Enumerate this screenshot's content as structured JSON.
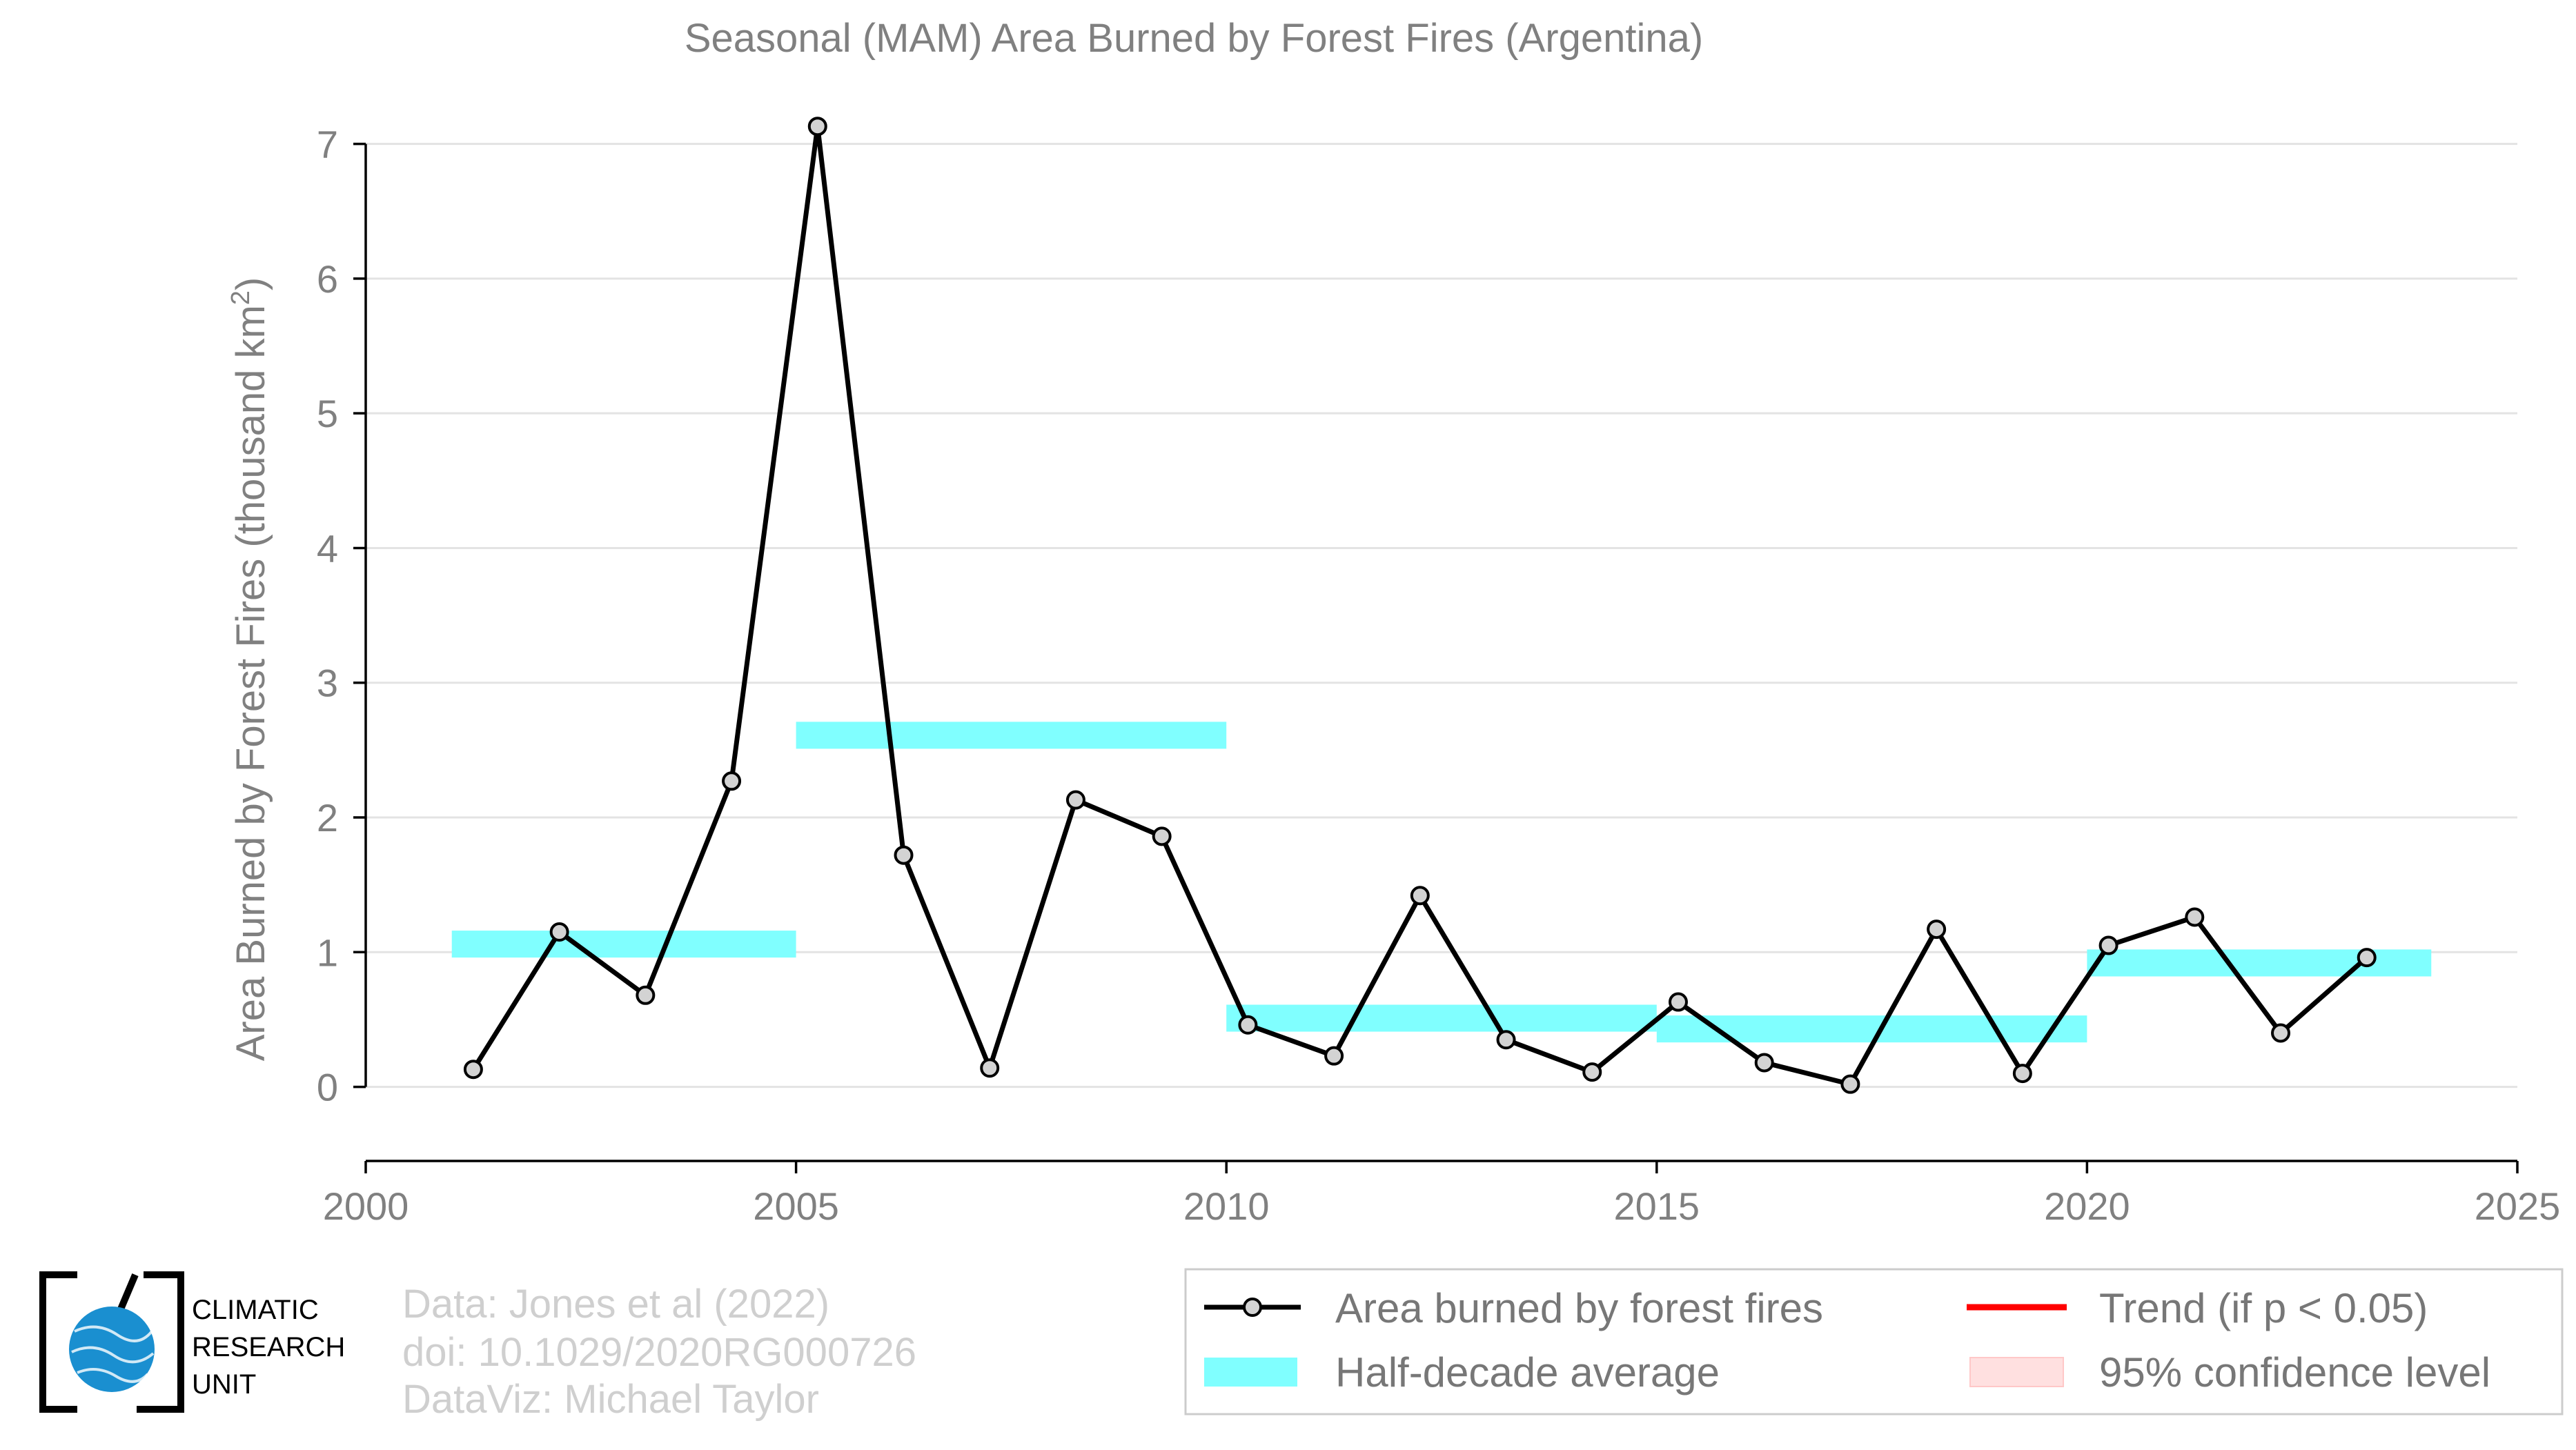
{
  "chart_data": {
    "type": "line",
    "title": "Seasonal (MAM) Area Burned by Forest Fires (Argentina)",
    "ylabel_main": "Area Burned by Forest Fires (thousand km",
    "ylabel_sup": "2",
    "ylabel_end": ")",
    "xlabel": "",
    "xlim": [
      2000,
      2025
    ],
    "ylim": [
      -0.55,
      7.3
    ],
    "xticks": [
      2000,
      2005,
      2010,
      2015,
      2020,
      2025
    ],
    "xtick_labels": [
      "2000",
      "2005",
      "2010",
      "2015",
      "2020",
      "2025"
    ],
    "yticks": [
      0,
      1,
      2,
      3,
      4,
      5,
      6,
      7
    ],
    "ytick_labels": [
      "0",
      "1",
      "2",
      "3",
      "4",
      "5",
      "6",
      "7"
    ],
    "grid": true,
    "series": [
      {
        "name": "Area burned by forest fires",
        "color": "#000000",
        "marker_color": "#d3d3d3",
        "x": [
          2001.25,
          2002.25,
          2003.25,
          2004.25,
          2005.25,
          2006.25,
          2007.25,
          2008.25,
          2009.25,
          2010.25,
          2011.25,
          2012.25,
          2013.25,
          2014.25,
          2015.25,
          2016.25,
          2017.25,
          2018.25,
          2019.25,
          2020.25,
          2021.25,
          2022.25,
          2023.25
        ],
        "y": [
          0.13,
          1.15,
          0.68,
          2.27,
          7.13,
          1.72,
          0.14,
          2.13,
          1.86,
          0.46,
          0.23,
          1.42,
          0.35,
          0.11,
          0.63,
          0.18,
          0.02,
          1.17,
          0.1,
          1.05,
          1.26,
          0.4,
          0.96
        ]
      }
    ],
    "half_decade_average": {
      "name": "Half-decade average",
      "color": "#80ffff",
      "segments": [
        {
          "x0": 2001,
          "x1": 2005,
          "y": 1.06
        },
        {
          "x0": 2005,
          "x1": 2010,
          "y": 2.61
        },
        {
          "x0": 2010,
          "x1": 2015,
          "y": 0.51
        },
        {
          "x0": 2015,
          "x1": 2020,
          "y": 0.43
        },
        {
          "x0": 2020,
          "x1": 2024,
          "y": 0.92
        }
      ]
    },
    "legend": {
      "placement": "bottom-right",
      "entries": [
        {
          "label": "Area burned by forest fires",
          "kind": "line-marker",
          "color": "#000000"
        },
        {
          "label": "Half-decade average",
          "kind": "band",
          "color": "#80ffff"
        },
        {
          "label": "Trend (if p < 0.05)",
          "kind": "line",
          "color": "#ff0000"
        },
        {
          "label": "95% confidence level",
          "kind": "band",
          "color": "#ffe0e0"
        }
      ]
    }
  },
  "credits": {
    "line1": "Data: Jones et al (2022)",
    "line2": "doi: 10.1029/2020RG000726",
    "line3": "DataViz: Michael Taylor"
  },
  "logo": {
    "line1": "CLIMATIC",
    "line2": "RESEARCH",
    "line3": "UNIT",
    "globe_color": "#1a8fd0"
  }
}
